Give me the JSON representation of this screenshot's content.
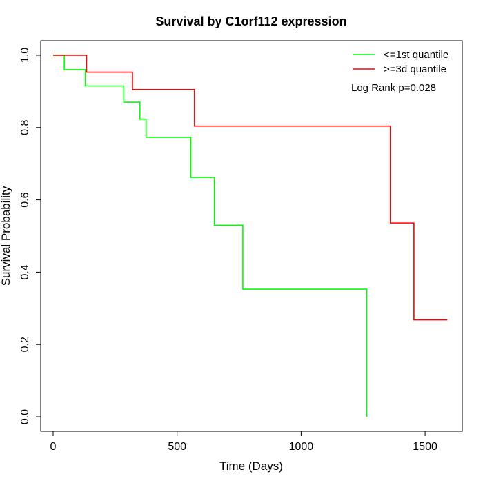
{
  "chart_data": {
    "type": "line",
    "subtype": "kaplan-meier step survival curve",
    "title": "Survival by C1orf112 expression",
    "xlabel": "Time (Days)",
    "ylabel": "Survival Probability",
    "xlim": [
      -50,
      1650
    ],
    "ylim": [
      -0.04,
      1.04
    ],
    "x_ticks": [
      0,
      500,
      1000,
      1500
    ],
    "x_tick_labels": [
      "0",
      "500",
      "1000",
      "1500"
    ],
    "y_ticks": [
      0.0,
      0.2,
      0.4,
      0.6,
      0.8,
      1.0
    ],
    "y_tick_labels": [
      "0.0",
      "0.2",
      "0.4",
      "0.6",
      "0.8",
      "1.0"
    ],
    "grid": false,
    "legend_position": "top-right",
    "annotation": "Log Rank p=0.028",
    "series": [
      {
        "name": "<=1st quantile",
        "color": "#00ff00",
        "step_points": [
          {
            "x": 0,
            "y": 1.0
          },
          {
            "x": 45,
            "y": 0.96
          },
          {
            "x": 130,
            "y": 0.915
          },
          {
            "x": 285,
            "y": 0.87
          },
          {
            "x": 350,
            "y": 0.823
          },
          {
            "x": 375,
            "y": 0.773
          },
          {
            "x": 555,
            "y": 0.662
          },
          {
            "x": 650,
            "y": 0.53
          },
          {
            "x": 765,
            "y": 0.353
          },
          {
            "x": 1265,
            "y": 0.0
          }
        ],
        "end_x": 1265
      },
      {
        "name": ">=3d quantile",
        "color": "#ff0000",
        "step_points": [
          {
            "x": 0,
            "y": 1.0
          },
          {
            "x": 135,
            "y": 0.953
          },
          {
            "x": 320,
            "y": 0.905
          },
          {
            "x": 570,
            "y": 0.804
          },
          {
            "x": 1360,
            "y": 0.536
          },
          {
            "x": 1455,
            "y": 0.268
          }
        ],
        "end_x": 1590
      }
    ]
  }
}
